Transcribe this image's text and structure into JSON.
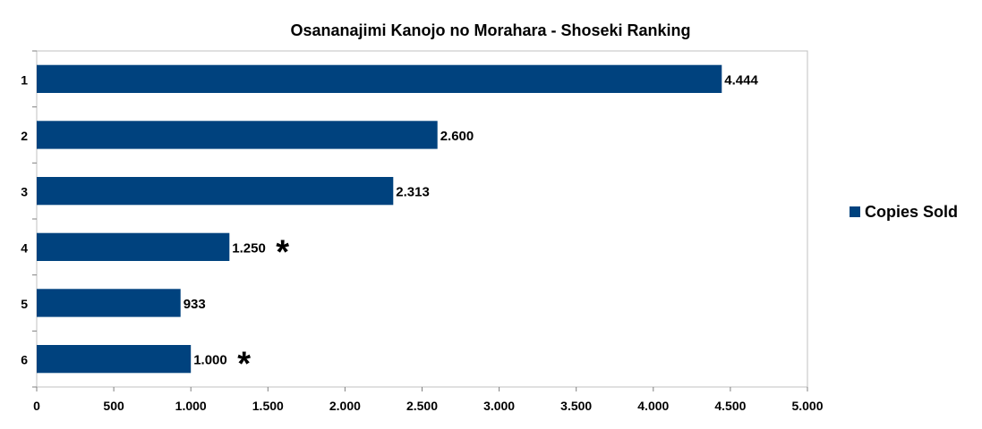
{
  "chart_data": {
    "type": "bar",
    "orientation": "horizontal",
    "title": "Osananajimi Kanojo no Morahara - Shoseki Ranking",
    "categories": [
      "1",
      "2",
      "3",
      "4",
      "5",
      "6"
    ],
    "series": [
      {
        "name": "Copies Sold",
        "values": [
          4444,
          2600,
          2313,
          1250,
          933,
          1000
        ],
        "color": "#00427E"
      }
    ],
    "data_labels": [
      "4.444",
      "2.600",
      "2.313",
      "1.250",
      "933",
      "1.000"
    ],
    "annotations": [
      {
        "category": "4",
        "text": "*"
      },
      {
        "category": "6",
        "text": "*"
      }
    ],
    "xlim": [
      0,
      5000
    ],
    "x_ticks": [
      0,
      500,
      1000,
      1500,
      2000,
      2500,
      3000,
      3500,
      4000,
      4500,
      5000
    ],
    "x_tick_labels": [
      "0",
      "500",
      "1.000",
      "1.500",
      "2.000",
      "2.500",
      "3.000",
      "3.500",
      "4.000",
      "4.500",
      "5.000"
    ],
    "grid": false,
    "legend_position": "right"
  }
}
